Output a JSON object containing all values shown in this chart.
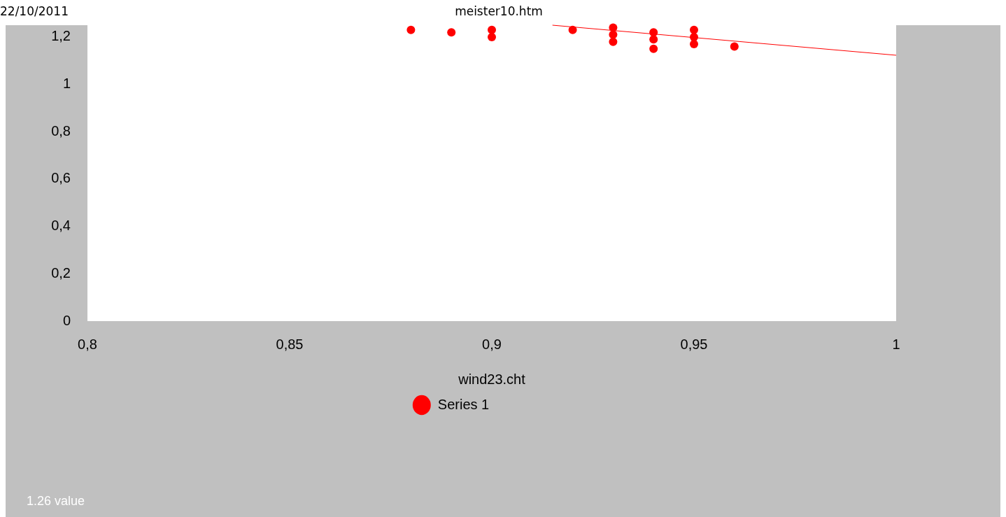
{
  "chart_data": {
    "type": "scatter",
    "xlabel": "wind23.cht",
    "xlim": [
      0.8,
      1
    ],
    "xticks": [
      {
        "value": 0.8,
        "label": "0,8"
      },
      {
        "value": 0.85,
        "label": "0,85"
      },
      {
        "value": 0.9,
        "label": "0,9"
      },
      {
        "value": 0.95,
        "label": "0,95"
      },
      {
        "value": 1,
        "label": "1"
      }
    ],
    "ylim": [
      0,
      1.25
    ],
    "yticks": [
      {
        "value": 0,
        "label": "0"
      },
      {
        "value": 0.2,
        "label": "0,2"
      },
      {
        "value": 0.4,
        "label": "0,4"
      },
      {
        "value": 0.6,
        "label": "0,6"
      },
      {
        "value": 0.8,
        "label": "0,8"
      },
      {
        "value": 1,
        "label": "1"
      },
      {
        "value": 1.2,
        "label": "1,2"
      }
    ],
    "grid": false,
    "legend": "bottom",
    "marker": "circle",
    "series": [
      {
        "name": "Series 1",
        "color": "#ff0000",
        "x": [
          0.88,
          0.89,
          0.9,
          0.9,
          0.92,
          0.93,
          0.93,
          0.93,
          0.94,
          0.94,
          0.94,
          0.95,
          0.95,
          0.95,
          0.96
        ],
        "values": [
          1.23,
          1.22,
          1.2,
          1.23,
          1.23,
          1.18,
          1.21,
          1.24,
          1.15,
          1.19,
          1.22,
          1.17,
          1.2,
          1.23,
          1.16
        ]
      },
      {
        "type": "line",
        "color": "#ff0000",
        "x": [
          0.915,
          1
        ],
        "values": [
          1.25,
          1.123
        ],
        "marker": "none"
      }
    ],
    "annotations": [
      "22/10/2011",
      "meister10.htm",
      "1.26 value"
    ]
  }
}
